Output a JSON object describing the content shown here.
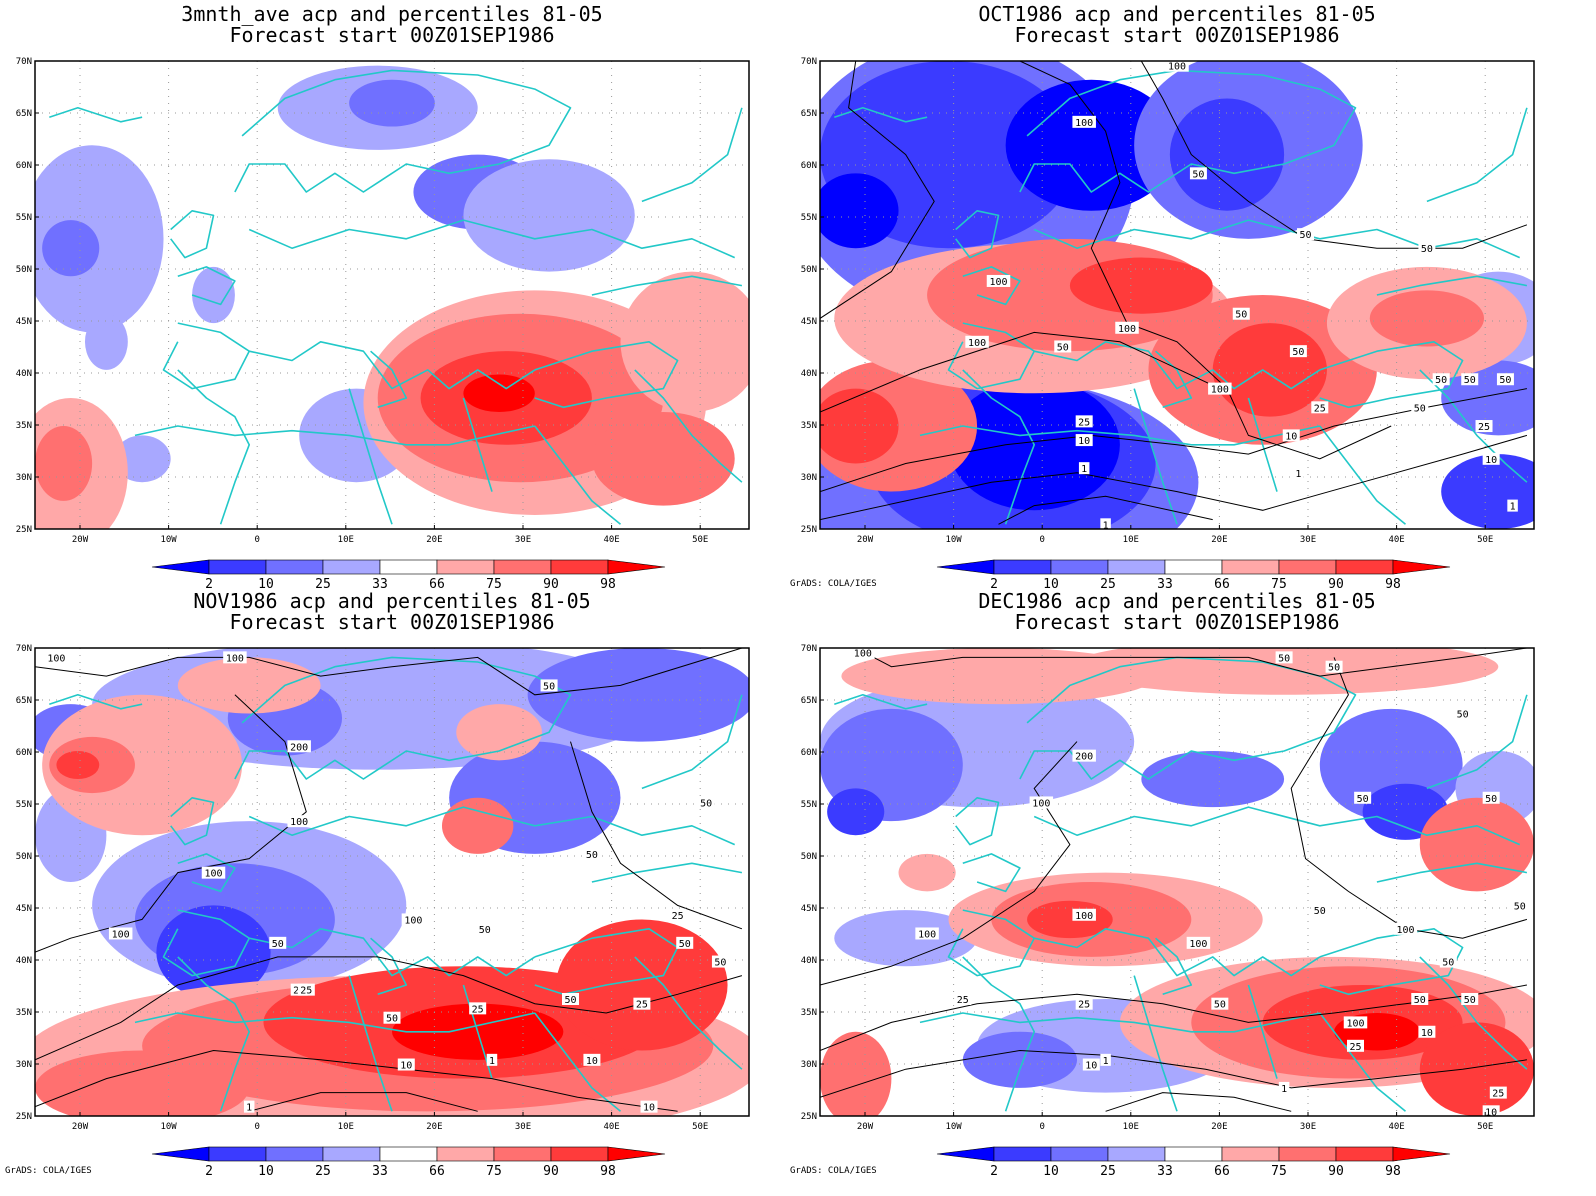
{
  "credit": "GrADS: COLA/IGES",
  "colorbar": {
    "labels": [
      "2",
      "10",
      "25",
      "33",
      "66",
      "75",
      "90",
      "98"
    ],
    "colors": [
      "#0000ff",
      "#3b3bff",
      "#7070ff",
      "#a8a8ff",
      "#ffffff",
      "#ffa8a8",
      "#ff7070",
      "#ff3b3b",
      "#ff0000"
    ]
  },
  "axes": {
    "lat_labels": [
      "70N",
      "65N",
      "60N",
      "55N",
      "50N",
      "45N",
      "40N",
      "35N",
      "30N",
      "25N"
    ],
    "lon_labels": [
      "20W",
      "10W",
      "0",
      "10E",
      "20E",
      "30E",
      "40E",
      "50E"
    ]
  },
  "panels": [
    {
      "title": "3mnth_ave acp and percentiles 81-05",
      "subtitle": "Forecast start 00Z01SEP1986",
      "show_credit": false,
      "contour_labels": []
    },
    {
      "title": "OCT1986 acp and percentiles 81-05",
      "subtitle": "Forecast start 00Z01SEP1986",
      "show_credit": true,
      "contour_labels": [
        "100",
        "100",
        "50",
        "50",
        "50",
        "50",
        "100",
        "100",
        "100",
        "50",
        "50",
        "50",
        "100",
        "50",
        "25",
        "10",
        "10",
        "25",
        "1",
        "1",
        "50",
        "50",
        "25",
        "10",
        "1",
        "1"
      ]
    },
    {
      "title": "NOV1986 acp and percentiles 81-05",
      "subtitle": "Forecast start 00Z01SEP1986",
      "show_credit": true,
      "contour_labels": [
        "100",
        "100",
        "50",
        "200",
        "100",
        "50",
        "50",
        "100",
        "100",
        "100",
        "50",
        "50",
        "25",
        "25",
        "50",
        "25",
        "50",
        "25",
        "50",
        "10",
        "10",
        "1",
        "1",
        "10",
        "50",
        "25"
      ]
    },
    {
      "title": "DEC1986 acp and percentiles 81-05",
      "subtitle": "Forecast start 00Z01SEP1986",
      "show_credit": true,
      "contour_labels": [
        "100",
        "50",
        "50",
        "50",
        "200",
        "100",
        "50",
        "50",
        "100",
        "100",
        "100",
        "50",
        "50",
        "100",
        "25",
        "50",
        "25",
        "1",
        "10",
        "1",
        "50",
        "100",
        "25",
        "10",
        "50",
        "50",
        "25",
        "10"
      ]
    }
  ]
}
